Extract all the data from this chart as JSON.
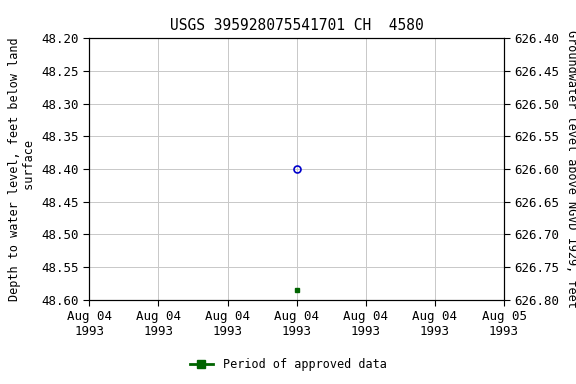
{
  "title": "USGS 395928075541701 CH  4580",
  "left_ylabel": "Depth to water level, feet below land\n surface",
  "right_ylabel": "Groundwater level above NGVD 1929, feet",
  "ylim_left": [
    48.2,
    48.6
  ],
  "ylim_right": [
    626.4,
    626.8
  ],
  "yticks_left": [
    48.2,
    48.25,
    48.3,
    48.35,
    48.4,
    48.45,
    48.5,
    48.55,
    48.6
  ],
  "yticks_right": [
    626.4,
    626.45,
    626.5,
    626.55,
    626.6,
    626.65,
    626.7,
    626.75,
    626.8
  ],
  "xlim": [
    0,
    6
  ],
  "xtick_positions": [
    0,
    1,
    2,
    3,
    4,
    5,
    6
  ],
  "xtick_labels": [
    "Aug 04\n1993",
    "Aug 04\n1993",
    "Aug 04\n1993",
    "Aug 04\n1993",
    "Aug 04\n1993",
    "Aug 04\n1993",
    "Aug 05\n1993"
  ],
  "blue_point_x": 3.0,
  "blue_point_y": 48.4,
  "green_point_x": 3.0,
  "green_point_y": 48.585,
  "blue_color": "#0000cc",
  "green_color": "#006400",
  "background_color": "#ffffff",
  "grid_color": "#c8c8c8",
  "legend_label": "Period of approved data",
  "title_fontsize": 10.5,
  "label_fontsize": 8.5,
  "tick_fontsize": 9
}
